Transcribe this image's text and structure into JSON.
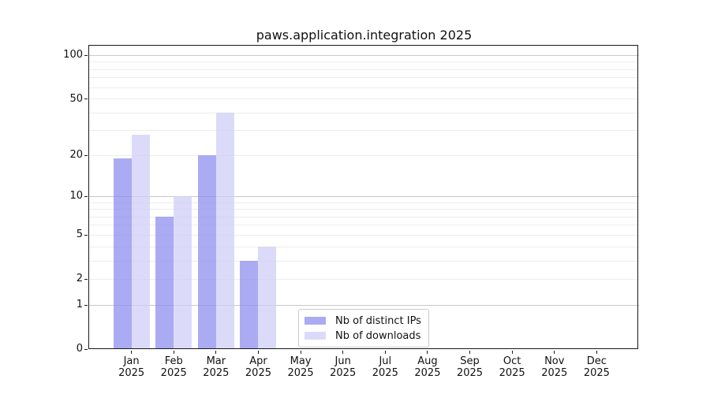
{
  "chart_data": {
    "type": "bar",
    "title": "paws.application.integration 2025",
    "year": "2025",
    "categories": [
      {
        "month": "Jan",
        "year": "2025"
      },
      {
        "month": "Feb",
        "year": "2025"
      },
      {
        "month": "Mar",
        "year": "2025"
      },
      {
        "month": "Apr",
        "year": "2025"
      },
      {
        "month": "May",
        "year": "2025"
      },
      {
        "month": "Jun",
        "year": "2025"
      },
      {
        "month": "Jul",
        "year": "2025"
      },
      {
        "month": "Aug",
        "year": "2025"
      },
      {
        "month": "Sep",
        "year": "2025"
      },
      {
        "month": "Oct",
        "year": "2025"
      },
      {
        "month": "Nov",
        "year": "2025"
      },
      {
        "month": "Dec",
        "year": "2025"
      }
    ],
    "series": [
      {
        "name": "Nb of distinct IPs",
        "color": "#8b8bef",
        "color_rendered": "#ababf3",
        "values": [
          19,
          7,
          20,
          3,
          0,
          0,
          0,
          0,
          0,
          0,
          0,
          0
        ]
      },
      {
        "name": "Nb of downloads",
        "color": "#cdcdf6",
        "color_rendered": "#dbdbf8",
        "values": [
          28,
          10,
          40,
          4,
          0,
          0,
          0,
          0,
          0,
          0,
          0,
          0
        ]
      }
    ],
    "yticks": [
      0,
      1,
      2,
      5,
      10,
      20,
      50,
      100
    ],
    "yscale": "log10(1+v)",
    "ylim": [
      0,
      116
    ],
    "xlabel": "",
    "ylabel": "",
    "grid": {
      "orientation": "horizontal",
      "minor_values": [
        2,
        3,
        4,
        5,
        6,
        7,
        8,
        9,
        20,
        30,
        40,
        50,
        60,
        70,
        80,
        90
      ],
      "major_values": [
        1,
        10,
        100
      ],
      "minor_color": "#ededed",
      "major_color": "#c8c8c8"
    },
    "legend": {
      "position": "bottom-center-left-inside",
      "entries": [
        "Nb of distinct IPs",
        "Nb of downloads"
      ]
    },
    "colors": {
      "background": "#ffffff",
      "spine": "#1a1a1a",
      "text": "#111111",
      "legend_border": "#cccccc"
    }
  }
}
